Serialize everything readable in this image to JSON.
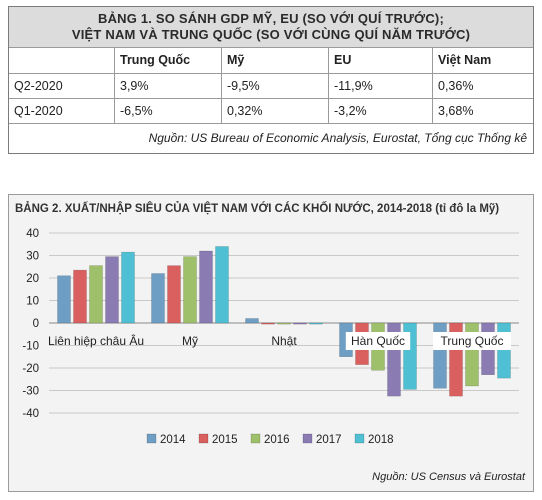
{
  "table1": {
    "title_line1": "BẢNG 1. SO SÁNH GDP MỸ, EU (SO VỚI QUÍ TRƯỚC);",
    "title_line2": "VIỆT NAM VÀ TRUNG QUỐC (SO VỚI CÙNG QUÍ NĂM TRƯỚC)",
    "headers": [
      "",
      "Trung Quốc",
      "Mỹ",
      "EU",
      "Việt Nam"
    ],
    "rows": [
      [
        "Q2-2020",
        "3,9%",
        "-9,5%",
        "-11,9%",
        "0,36%"
      ],
      [
        "Q1-2020",
        "-6,5%",
        "0,32%",
        "-3,2%",
        "3,68%"
      ]
    ],
    "source": "Nguồn: US Bureau of Economic Analysis, Eurostat, Tổng cục Thống kê"
  },
  "chart2_title": "BẢNG 2. XUẤT/NHẬP SIÊU CỦA VIỆT NAM VỚI CÁC KHỐI NƯỚC, 2014-2018 (tỉ đô la Mỹ)",
  "chart2_source": "Nguồn: US Census và Eurostat",
  "chart_data": {
    "type": "bar",
    "categories": [
      "Liên hiệp châu Âu",
      "Mỹ",
      "Nhật",
      "Hàn Quốc",
      "Trung Quốc"
    ],
    "series": [
      {
        "name": "2014",
        "color": "#6f9ec4",
        "values": [
          21,
          22,
          2,
          -15,
          -29
        ]
      },
      {
        "name": "2015",
        "color": "#d9605e",
        "values": [
          23.5,
          25.5,
          -0.5,
          -18.5,
          -32.5
        ]
      },
      {
        "name": "2016",
        "color": "#9fc06a",
        "values": [
          25.5,
          29.5,
          -0.5,
          -21,
          -28
        ]
      },
      {
        "name": "2017",
        "color": "#8b7bb3",
        "values": [
          29.5,
          32,
          -0.5,
          -32.5,
          -23
        ]
      },
      {
        "name": "2018",
        "color": "#4fc0d3",
        "values": [
          31.5,
          34,
          -0.5,
          -29.5,
          -24.5
        ]
      }
    ],
    "ylim": [
      -40,
      40
    ],
    "yticks": [
      40,
      30,
      20,
      10,
      0,
      -10,
      -20,
      -30,
      -40
    ],
    "grid": true,
    "legend": "bottom"
  }
}
